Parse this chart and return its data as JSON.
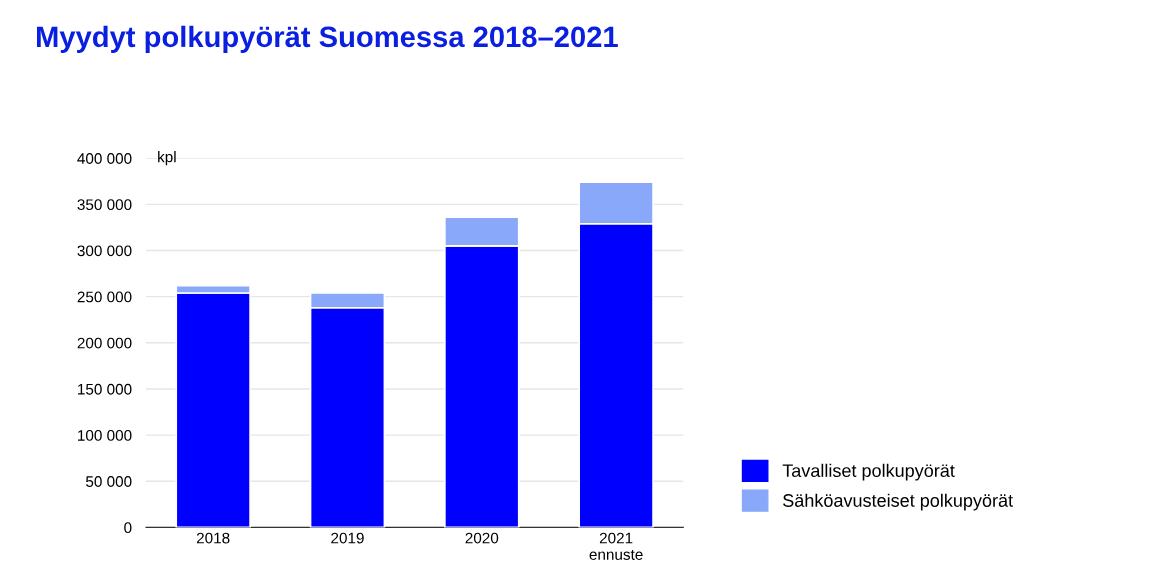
{
  "chart_data": {
    "type": "bar",
    "title": "Myydyt polkupyörät Suomessa 2018–2021",
    "categories": [
      "2018",
      "2019",
      "2020",
      "2021\nennuste"
    ],
    "series": [
      {
        "name": "Tavalliset polkupyörät",
        "color": "#0000ff",
        "values": [
          254000,
          238000,
          305000,
          329000
        ]
      },
      {
        "name": "Sähköavusteiset polkupyörät",
        "color": "#8aa8fa",
        "values": [
          8000,
          16000,
          31000,
          45000
        ]
      }
    ],
    "stacked": true,
    "ylim": [
      0,
      400000
    ],
    "yticks": [
      0,
      {
        "value": 50000,
        "label": "50 000"
      },
      {
        "value": 100000,
        "label": "100 000"
      },
      {
        "value": 150000,
        "label": "150 000"
      },
      {
        "value": 200000,
        "label": "200 000"
      },
      {
        "value": 250000,
        "label": "250 000"
      },
      {
        "value": 300000,
        "label": "300 000"
      },
      {
        "value": 350000,
        "label": "350 000"
      },
      {
        "value": 400000,
        "label": "400 000"
      }
    ],
    "annotations": [
      "kpl"
    ],
    "grid": "y",
    "legend": "bottom right"
  }
}
